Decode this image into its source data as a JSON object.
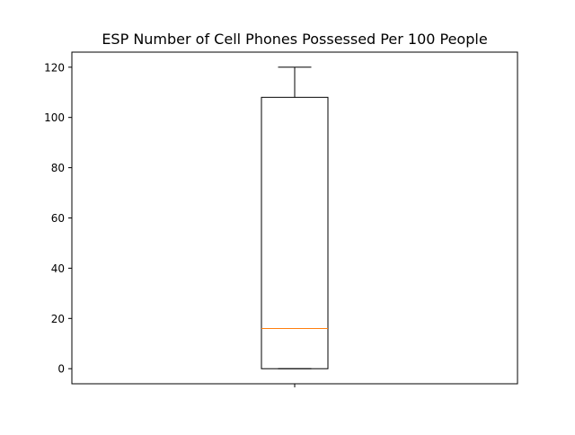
{
  "chart_data": {
    "type": "box",
    "title": "ESP Number of Cell Phones Possessed Per 100 People",
    "xlabel": "",
    "ylabel": "",
    "ylim": [
      -6,
      126
    ],
    "yticks": [
      0,
      20,
      40,
      60,
      80,
      100,
      120
    ],
    "xticks": [
      ""
    ],
    "grid": false,
    "boxes": [
      {
        "whisker_low": 0,
        "q1": 0,
        "median": 16,
        "q3": 108,
        "whisker_high": 120
      }
    ],
    "colors": {
      "box": "#000000",
      "median": "#ff7f0e"
    }
  }
}
